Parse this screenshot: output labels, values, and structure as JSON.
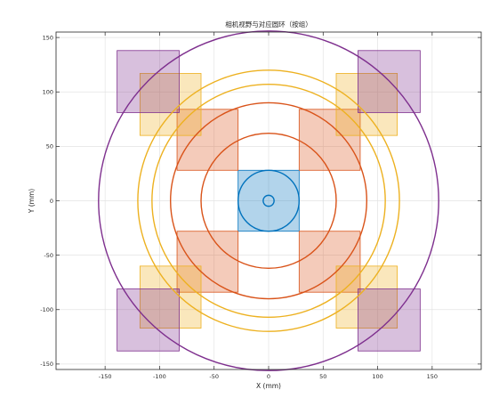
{
  "chart_data": {
    "type": "scatter",
    "title": "相机视野与对应圆环（按组）",
    "xlabel": "X (mm)",
    "ylabel": "Y (mm)",
    "xlim": [
      -195,
      195
    ],
    "ylim": [
      -155,
      155
    ],
    "xticks": [
      -150,
      -100,
      -50,
      0,
      50,
      100,
      150
    ],
    "yticks": [
      -150,
      -100,
      -50,
      0,
      50,
      100,
      150
    ],
    "grid": true,
    "center_marker": "circle",
    "groups": [
      {
        "color": "#0072BD",
        "rectangles": [
          [
            -28,
            -28,
            28,
            28
          ]
        ],
        "circles": [
          5,
          28
        ]
      },
      {
        "color": "#D95319",
        "rectangles": [
          [
            -84,
            28,
            -28,
            84
          ],
          [
            28,
            28,
            84,
            84
          ],
          [
            -84,
            -84,
            -28,
            -28
          ],
          [
            28,
            -84,
            84,
            -28
          ]
        ],
        "circles": [
          62,
          90
        ]
      },
      {
        "color": "#EDB120",
        "rectangles": [
          [
            -118,
            60,
            -62,
            117
          ],
          [
            62,
            60,
            118,
            117
          ],
          [
            -118,
            -117,
            -62,
            -60
          ],
          [
            62,
            -117,
            118,
            -60
          ]
        ],
        "circles": [
          107,
          120
        ]
      },
      {
        "color": "#7E2F8E",
        "rectangles": [
          [
            -139,
            81,
            -82,
            138
          ],
          [
            82,
            81,
            139,
            138
          ],
          [
            -139,
            -138,
            -82,
            -81
          ],
          [
            82,
            -138,
            139,
            -81
          ]
        ],
        "circles": [
          156
        ]
      }
    ]
  }
}
